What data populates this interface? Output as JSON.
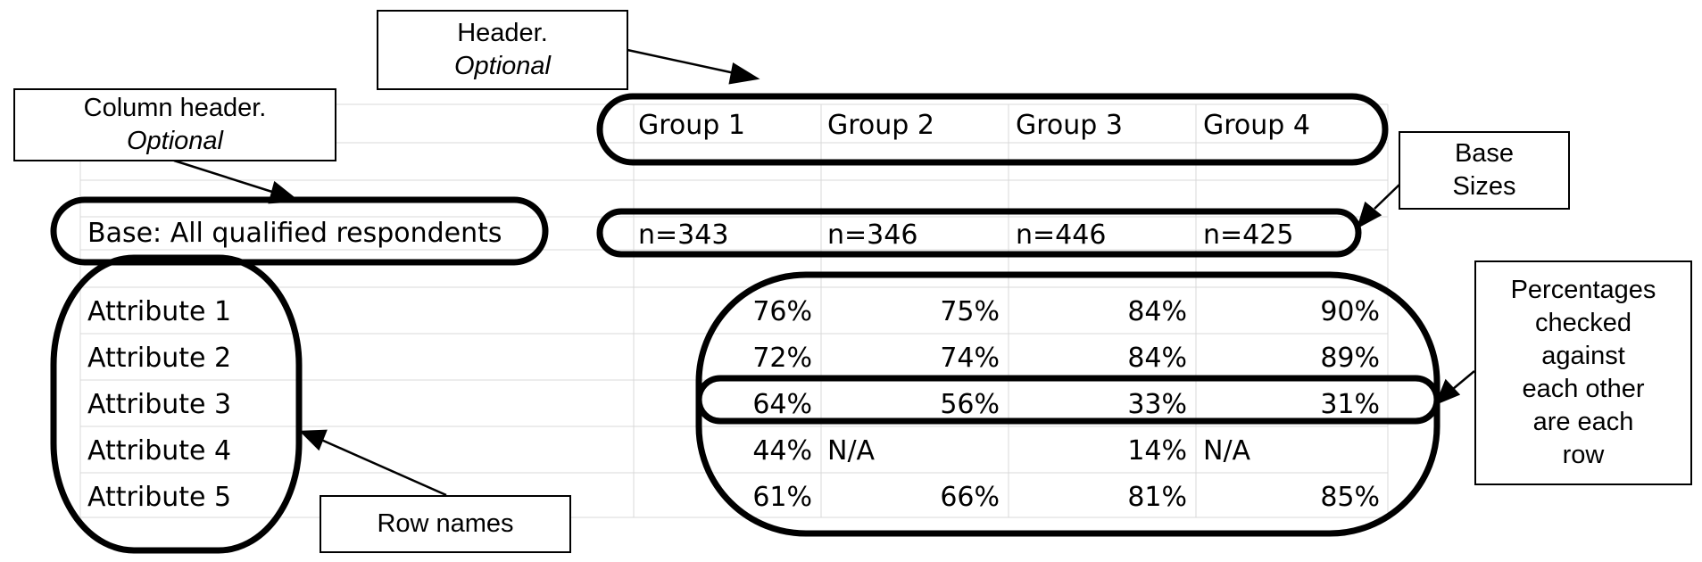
{
  "table": {
    "column_header": "Base: All qualified respondents",
    "groups": [
      "Group 1",
      "Group 2",
      "Group 3",
      "Group 4"
    ],
    "base_sizes": [
      "n=343",
      "n=346",
      "n=446",
      "n=425"
    ],
    "rows": [
      {
        "name": "Attribute 1",
        "values": [
          "76%",
          "75%",
          "84%",
          "90%"
        ]
      },
      {
        "name": "Attribute 2",
        "values": [
          "72%",
          "74%",
          "84%",
          "89%"
        ]
      },
      {
        "name": "Attribute 3",
        "values": [
          "64%",
          "56%",
          "33%",
          "31%"
        ]
      },
      {
        "name": "Attribute 4",
        "values": [
          "44%",
          "N/A",
          "14%",
          "N/A"
        ]
      },
      {
        "name": "Attribute 5",
        "values": [
          "61%",
          "66%",
          "81%",
          "85%"
        ]
      }
    ]
  },
  "callouts": {
    "header": {
      "line1": "Header.",
      "line2": "Optional"
    },
    "column_header": {
      "line1": "Column header.",
      "line2": "Optional"
    },
    "base_sizes": {
      "line1": "Base",
      "line2": "Sizes"
    },
    "row_names": {
      "line1": "Row names"
    },
    "percentages": {
      "lines": [
        "Percentages",
        "checked",
        "against",
        "each other",
        "are each",
        "row"
      ]
    }
  },
  "colors": {
    "ink": "#000000",
    "grid": "#d9d9d9"
  }
}
